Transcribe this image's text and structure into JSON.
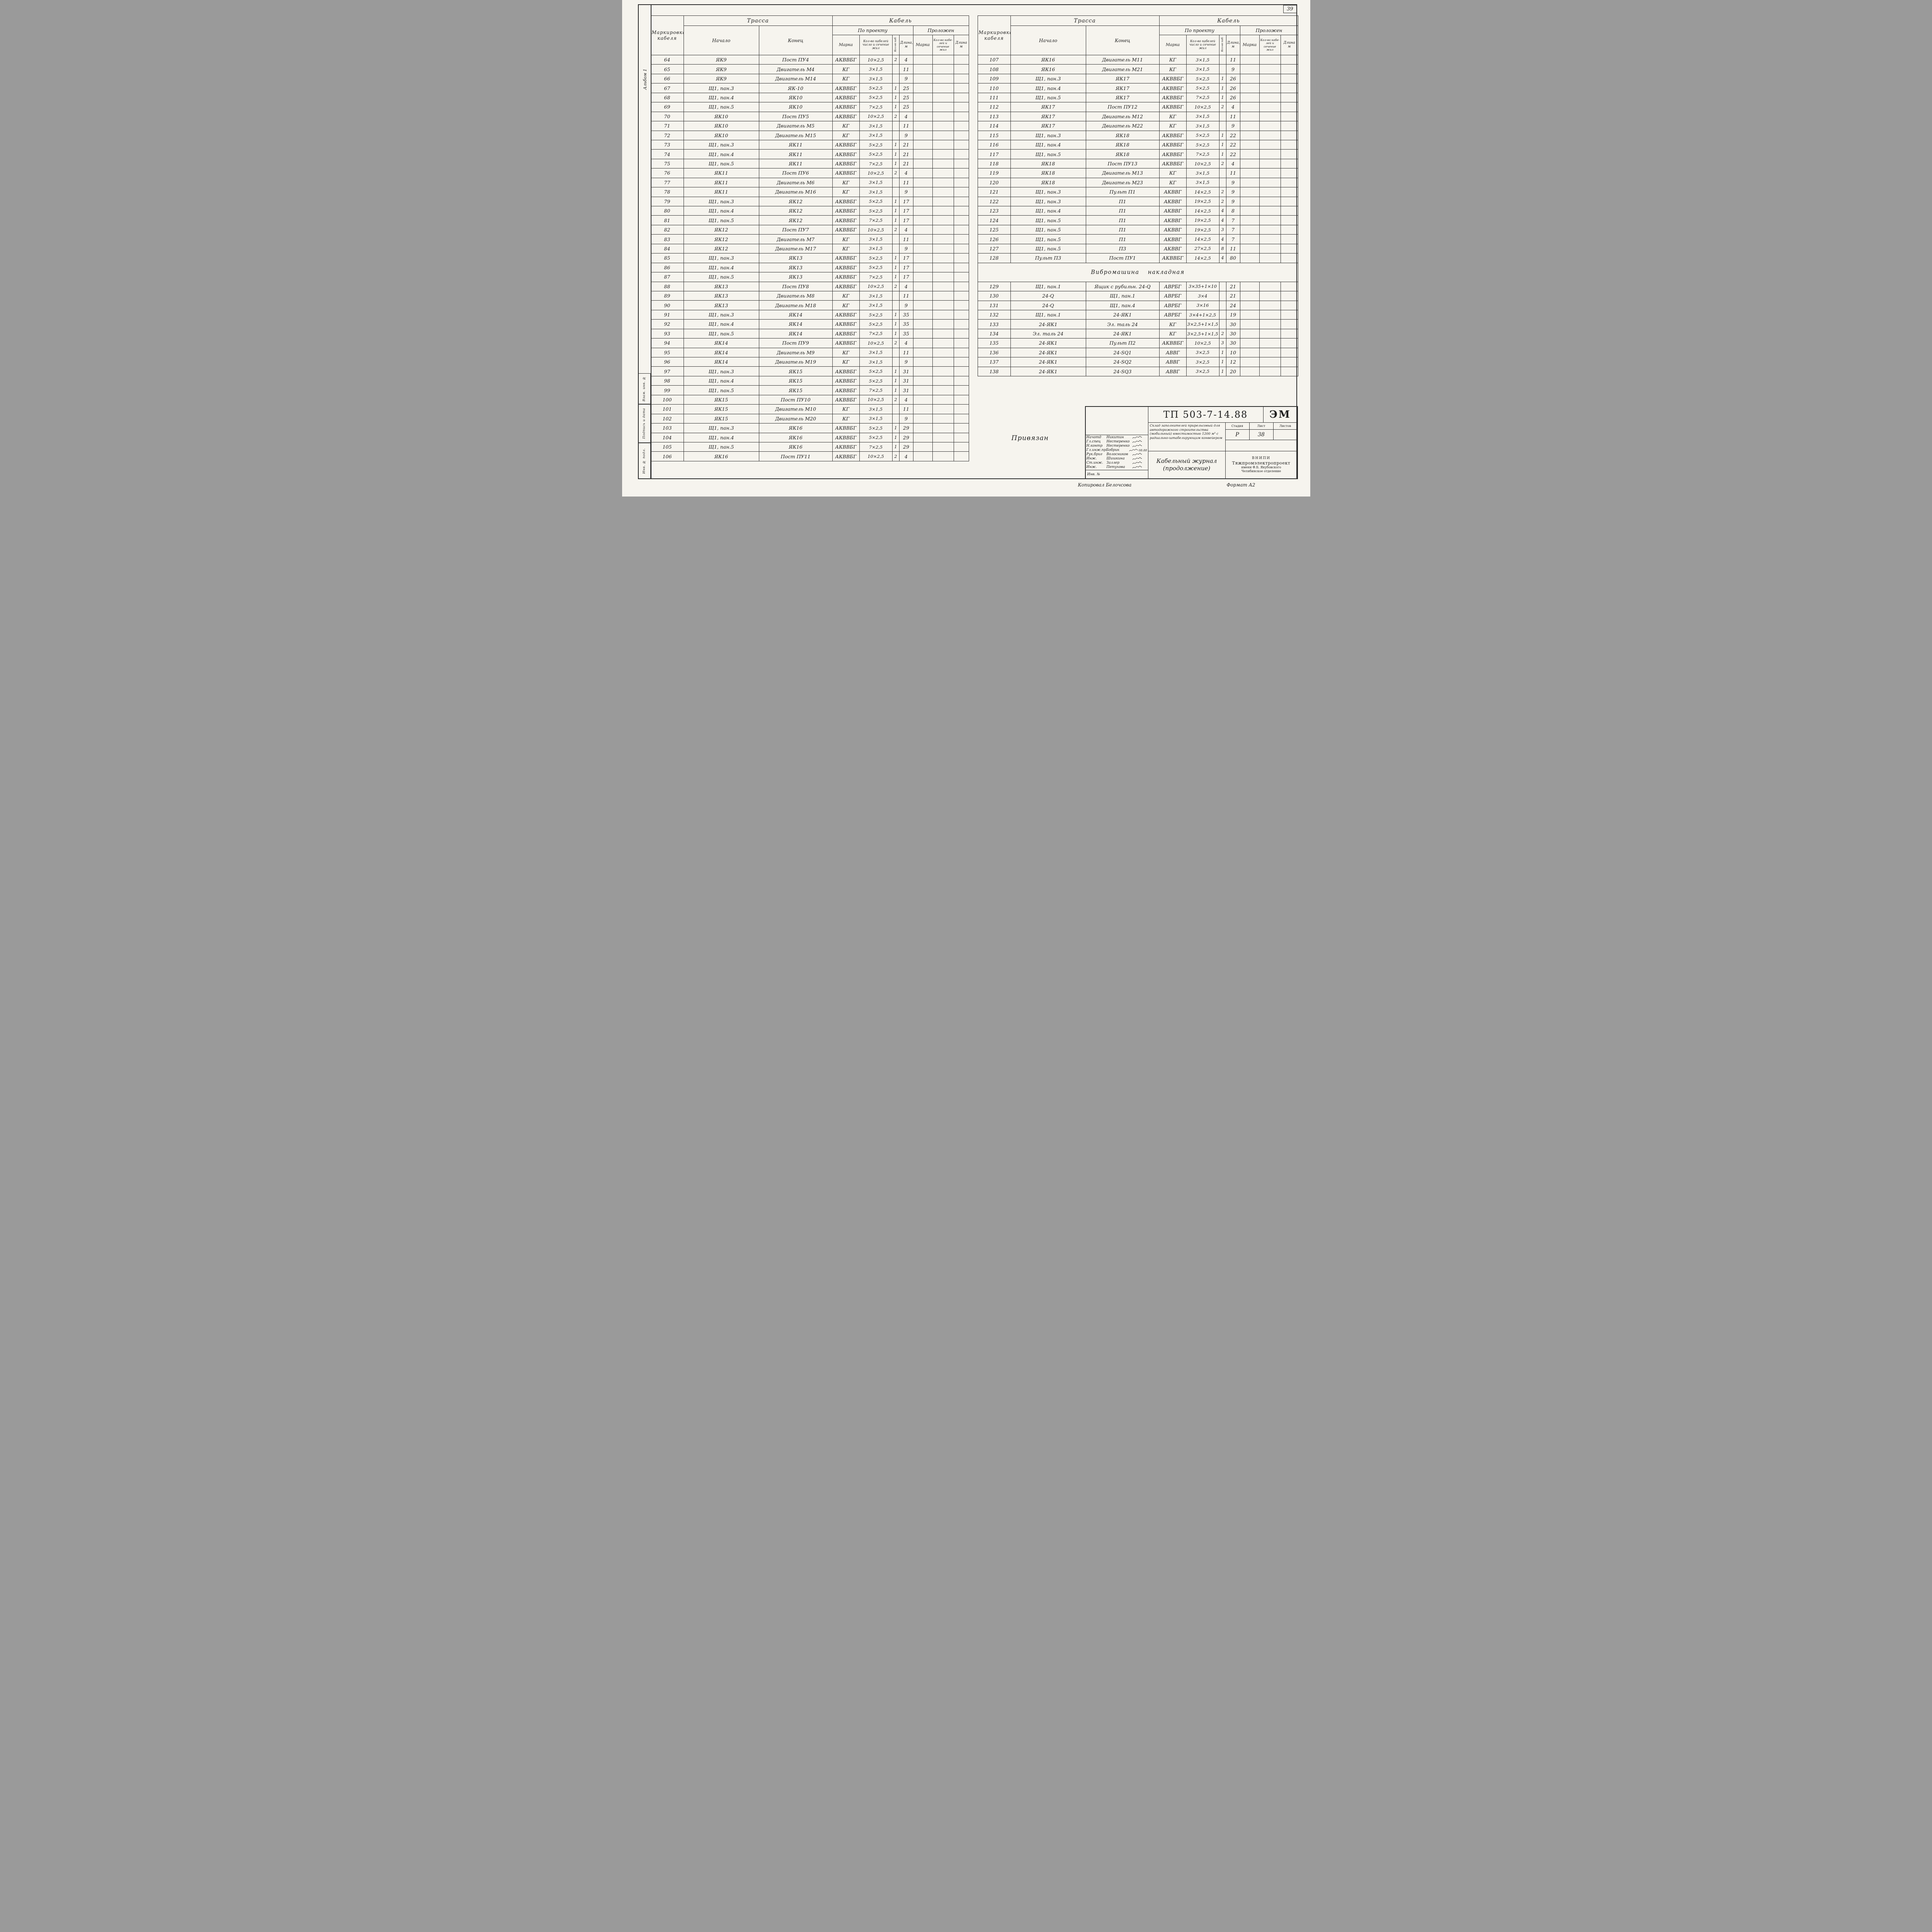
{
  "page": {
    "number": "39",
    "album": "Альбом 1",
    "stamp_boxes": [
      "Взам. инв. №",
      "Подпись и дата",
      "Инв. № подл."
    ],
    "footer_copied": "Копировал  Белочсова",
    "footer_format": "Формат А2"
  },
  "header": {
    "marking": "Маркировка кабеля",
    "route": "Трасса",
    "cable": "Кабель",
    "start": "Начало",
    "end": "Конец",
    "by_project": "По проекту",
    "laid": "Проложен",
    "brand": "Марка",
    "count_section": "Кол-во кабелей число и сечение жил",
    "count_short": "Кол-во каб.",
    "length": "Длина, м",
    "laid_brand": "Марка",
    "laid_count": "Кол-во кабе­лей и сечение жил",
    "laid_length": "Длина м"
  },
  "table_left": {
    "rows": [
      [
        "64",
        "ЯК9",
        "Пост ПУ4",
        "АКВВБГ",
        "10×2,5",
        "2",
        "4"
      ],
      [
        "65",
        "ЯК9",
        "Двигатель М4",
        "КГ",
        "3×1,5",
        "",
        "11"
      ],
      [
        "66",
        "ЯК9",
        "Двигатель М14",
        "КГ",
        "3×1,5",
        "",
        "9"
      ],
      [
        "67",
        "Щ1, пан.3",
        "ЯК-10",
        "АКВВБГ",
        "5×2,5",
        "1",
        "25"
      ],
      [
        "68",
        "Щ1, пан.4",
        "ЯК10",
        "АКВВБГ",
        "5×2,5",
        "1",
        "25"
      ],
      [
        "69",
        "Щ1, пан.5",
        "ЯК10",
        "АКВВБГ",
        "7×2,5",
        "1",
        "25"
      ],
      [
        "70",
        "ЯК10",
        "Пост ПУ5",
        "АКВВБГ",
        "10×2,5",
        "2",
        "4"
      ],
      [
        "71",
        "ЯК10",
        "Двигатель М5",
        "КГ",
        "3×1,5",
        "",
        "11"
      ],
      [
        "72",
        "ЯК10",
        "Двигатель М15",
        "КГ",
        "3×1,5",
        "",
        "9"
      ],
      [
        "73",
        "Щ1, пан.3",
        "ЯК11",
        "АКВВБГ",
        "5×2,5",
        "1",
        "21"
      ],
      [
        "74",
        "Щ1, пан.4",
        "ЯК11",
        "АКВВБГ",
        "5×2,5",
        "1",
        "21"
      ],
      [
        "75",
        "Щ1, пан.5",
        "ЯК11",
        "АКВВБГ",
        "7×2,5",
        "1",
        "21"
      ],
      [
        "76",
        "ЯК11",
        "Пост ПУ6",
        "АКВВБГ",
        "10×2,5",
        "2",
        "4"
      ],
      [
        "77",
        "ЯК11",
        "Двигатель М6",
        "КГ",
        "3×1,5",
        "",
        "11"
      ],
      [
        "78",
        "ЯК11",
        "Двигатель М16",
        "КГ",
        "3×1,5",
        "",
        "9"
      ],
      [
        "79",
        "Щ1, пан.3",
        "ЯК12",
        "АКВВБГ",
        "5×2,5",
        "1",
        "17"
      ],
      [
        "80",
        "Щ1, пан.4",
        "ЯК12",
        "АКВВБГ",
        "5×2,5",
        "1",
        "17"
      ],
      [
        "81",
        "Щ1, пан.5",
        "ЯК12",
        "АКВВБГ",
        "7×2,5",
        "1",
        "17"
      ],
      [
        "82",
        "ЯК12",
        "Пост ПУ7",
        "АКВВБГ",
        "10×2,5",
        "2",
        "4"
      ],
      [
        "83",
        "ЯК12",
        "Двигатель М7",
        "КГ",
        "3×1,5",
        "",
        "11"
      ],
      [
        "84",
        "ЯК12",
        "Двигатель М17",
        "КГ",
        "3×1,5",
        "",
        "9"
      ],
      [
        "85",
        "Щ1, пан.3",
        "ЯК13",
        "АКВВБГ",
        "5×2,5",
        "1",
        "17"
      ],
      [
        "86",
        "Щ1, пан.4",
        "ЯК13",
        "АКВВБГ",
        "5×2,5",
        "1",
        "17"
      ],
      [
        "87",
        "Щ1, пан.5",
        "ЯК13",
        "АКВВБГ",
        "7×2,5",
        "1",
        "17"
      ],
      [
        "88",
        "ЯК13",
        "Пост ПУ8",
        "АКВВБГ",
        "10×2,5",
        "2",
        "4"
      ],
      [
        "89",
        "ЯК13",
        "Двигатель М8",
        "КГ",
        "3×1,5",
        "",
        "11"
      ],
      [
        "90",
        "ЯК13",
        "Двигатель М18",
        "КГ",
        "3×1,5",
        "",
        "9"
      ],
      [
        "91",
        "Щ1, пан.3",
        "ЯК14",
        "АКВВБГ",
        "5×2,5",
        "1",
        "35"
      ],
      [
        "92",
        "Щ1, пан.4",
        "ЯК14",
        "АКВВБГ",
        "5×2,5",
        "1",
        "35"
      ],
      [
        "93",
        "Щ1, пан.5",
        "ЯК14",
        "АКВВБГ",
        "7×2,5",
        "1",
        "35"
      ],
      [
        "94",
        "ЯК14",
        "Пост ПУ9",
        "АКВВБГ",
        "10×2,5",
        "2",
        "4"
      ],
      [
        "95",
        "ЯК14",
        "Двигатель М9",
        "КГ",
        "3×1,5",
        "",
        "11"
      ],
      [
        "96",
        "ЯК14",
        "Двигатель М19",
        "КГ",
        "3×1,5",
        "",
        "9"
      ],
      [
        "97",
        "Щ1, пан.3",
        "ЯК15",
        "АКВВБГ",
        "5×2,5",
        "1",
        "31"
      ],
      [
        "98",
        "Щ1, пан.4",
        "ЯК15",
        "АКВВБГ",
        "5×2,5",
        "1",
        "31"
      ],
      [
        "99",
        "Щ1, пан.5",
        "ЯК15",
        "АКВВБГ",
        "7×2,5",
        "1",
        "31"
      ],
      [
        "100",
        "ЯК15",
        "Пост ПУ10",
        "АКВВБГ",
        "10×2,5",
        "2",
        "4"
      ],
      [
        "101",
        "ЯК15",
        "Двигатель М10",
        "КГ",
        "3×1,5",
        "",
        "11"
      ],
      [
        "102",
        "ЯК15",
        "Двигатель М20",
        "КГ",
        "3×1,5",
        "",
        "9"
      ],
      [
        "103",
        "Щ1, пан.3",
        "ЯК16",
        "АКВВБГ",
        "5×2,5",
        "1",
        "29"
      ],
      [
        "104",
        "Щ1, пан.4",
        "ЯК16",
        "АКВВБГ",
        "5×2,5",
        "1",
        "29"
      ],
      [
        "105",
        "Щ1, пан.5",
        "ЯК16",
        "АКВВБГ",
        "7×2,5",
        "1",
        "29"
      ],
      [
        "106",
        "ЯК16",
        "Пост ПУ11",
        "АКВВБГ",
        "10×2,5",
        "2",
        "4"
      ]
    ]
  },
  "table_right": {
    "rows": [
      [
        "107",
        "ЯК16",
        "Двигатель М11",
        "КГ",
        "3×1,5",
        "",
        "11"
      ],
      [
        "108",
        "ЯК16",
        "Двигатель М21",
        "КГ",
        "3×1,5",
        "",
        "9"
      ],
      [
        "109",
        "Щ1, пан.3",
        "ЯК17",
        "АКВВБГ",
        "5×2,5",
        "1",
        "26"
      ],
      [
        "110",
        "Щ1, пан.4",
        "ЯК17",
        "АКВВБГ",
        "5×2,5",
        "1",
        "26"
      ],
      [
        "111",
        "Щ1, пан.5",
        "ЯК17",
        "АКВВБГ",
        "7×2,5",
        "1",
        "26"
      ],
      [
        "112",
        "ЯК17",
        "Пост ПУ12",
        "АКВВБГ",
        "10×2,5",
        "2",
        "4"
      ],
      [
        "113",
        "ЯК17",
        "Двигатель М12",
        "КГ",
        "3×1,5",
        "",
        "11"
      ],
      [
        "114",
        "ЯК17",
        "Двигатель М22",
        "КГ",
        "3×1,5",
        "",
        "9"
      ],
      [
        "115",
        "Щ1, пан.3",
        "ЯК18",
        "АКВВБГ",
        "5×2,5",
        "1",
        "22"
      ],
      [
        "116",
        "Щ1, пан.4",
        "ЯК18",
        "АКВВБГ",
        "5×2,5",
        "1",
        "22"
      ],
      [
        "117",
        "Щ1, пан.5",
        "ЯК18",
        "АКВВБГ",
        "7×2,5",
        "1",
        "22"
      ],
      [
        "118",
        "ЯК18",
        "Пост ПУ13",
        "АКВВБГ",
        "10×2,5",
        "2",
        "4"
      ],
      [
        "119",
        "ЯК18",
        "Двигатель М13",
        "КГ",
        "3×1,5",
        "",
        "11"
      ],
      [
        "120",
        "ЯК18",
        "Двигатель М23",
        "КГ",
        "3×1,5",
        "",
        "9"
      ],
      [
        "121",
        "Щ1, пан.3",
        "Пульт П1",
        "АКВВГ",
        "14×2,5",
        "2",
        "9"
      ],
      [
        "122",
        "Щ1, пан.3",
        "П1",
        "АКВВГ",
        "19×2,5",
        "2",
        "9"
      ],
      [
        "123",
        "Щ1, пан.4",
        "П1",
        "АКВВГ",
        "14×2,5",
        "4",
        "8"
      ],
      [
        "124",
        "Щ1, пан.5",
        "П1",
        "АКВВГ",
        "19×2,5",
        "4",
        "7"
      ],
      [
        "125",
        "Щ1, пан.5",
        "П1",
        "АКВВГ",
        "19×2,5",
        "3",
        "7"
      ],
      [
        "126",
        "Щ1, пан.5",
        "П1",
        "АКВВГ",
        "14×2,5",
        "4",
        "7"
      ],
      [
        "127",
        "Щ1, пан.5",
        "П3",
        "АКВВГ",
        "27×2,5",
        "8",
        "11"
      ],
      [
        "128",
        "Пульт П3",
        "Пост ПУ1",
        "АКВВБГ",
        "14×2,5",
        "4",
        "80"
      ],
      {
        "section": "Вибромашина накладная"
      },
      [
        "129",
        "Щ1, пан.1",
        "Ящик с рубильн. 24-Q",
        "АВРБГ",
        "3×35+1×10",
        "",
        "21"
      ],
      [
        "130",
        "24-Q",
        "Щ1, пан.1",
        "АВРБГ",
        "3×4",
        "",
        "21"
      ],
      [
        "131",
        "24-Q",
        "Щ1, пан.4",
        "АВРБГ",
        "3×16",
        "",
        "24"
      ],
      [
        "132",
        "Щ1, пан.1",
        "24-ЯК1",
        "АВРБГ",
        "3×4+1×2,5",
        "",
        "19"
      ],
      [
        "133",
        "24-ЯК1",
        "Эл. таль 24",
        "КГ",
        "3×2,5+1×1,5",
        "",
        "30"
      ],
      [
        "134",
        "Эл. таль 24",
        "24-ЯК1",
        "КГ",
        "3×2,5+1×1,5",
        "2",
        "30"
      ],
      [
        "135",
        "24-ЯК1",
        "Пульт П2",
        "АКВВБГ",
        "10×2,5",
        "3",
        "30"
      ],
      [
        "136",
        "24-ЯК1",
        "24-SQ1",
        "АВВГ",
        "3×2,5",
        "1",
        "10"
      ],
      [
        "137",
        "24-ЯК1",
        "24-SQ2",
        "АВВГ",
        "3×2,5",
        "1",
        "12"
      ],
      [
        "138",
        "24-ЯК1",
        "24-SQ3",
        "АВВГ",
        "3×2,5",
        "1",
        "20"
      ]
    ]
  },
  "titleblock": {
    "doc_number": "ТП 503-7-14.88",
    "doc_type": "ЭМ",
    "description": "Склад заполнителей прирельсовый для автодорожного строительства (мобильный) вместимостью 1200 м³ с радиально-штабелирующим конвейером",
    "doc_title": "Кабельный журнал (продолжение)",
    "org_line1": "ВНИПИ",
    "org_line2": "Тяжпромэлектропроект",
    "org_line3": "имени Ф.Б. Якубовского",
    "org_line4": "Челябинское отделение",
    "stage_label": "Стадия",
    "sheet_label": "Лист",
    "sheets_label": "Листов",
    "stage": "Р",
    "sheet": "38",
    "sheets": "",
    "inv_label": "Инв. №",
    "binding_note": "Привязан",
    "signers": [
      {
        "role": "Начотд",
        "name": "Никитин"
      },
      {
        "role": "Гл.спец",
        "name": "Нестеренко"
      },
      {
        "role": "Н.контр",
        "name": "Нестеренко"
      },
      {
        "role": "Гл.инж.пр",
        "name": "Бобрик",
        "date": "08.88"
      },
      {
        "role": "Рук.бриг",
        "name": "Волосников"
      },
      {
        "role": "Инж.",
        "name": "Шишкина"
      },
      {
        "role": "Ст.инж.",
        "name": "Заллер"
      },
      {
        "role": "Инж.",
        "name": "Петухова"
      }
    ]
  }
}
